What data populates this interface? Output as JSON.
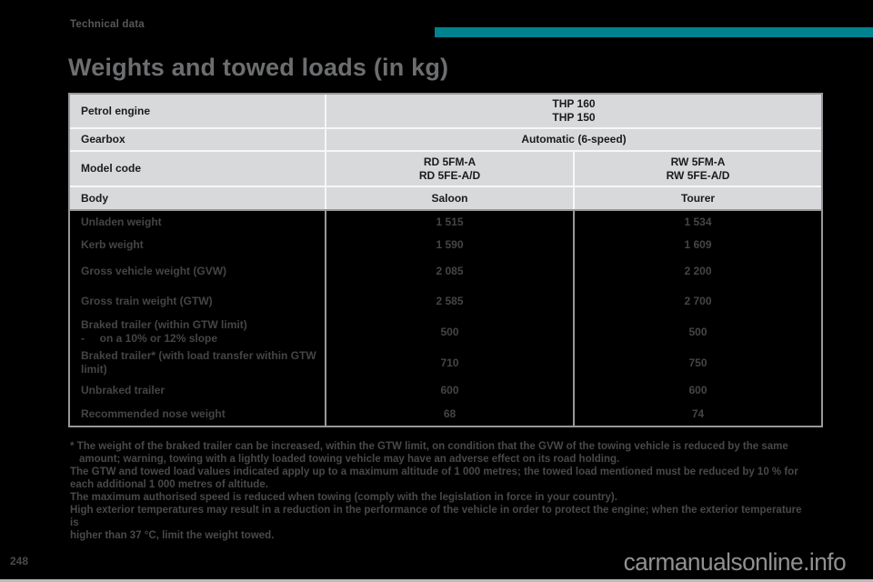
{
  "page": {
    "section_label": "Technical data",
    "title": "Weights and towed loads (in kg)",
    "page_number": "248",
    "watermark": "carmanualsonline.info"
  },
  "colors": {
    "accent_teal": "#00838F",
    "header_cell_bg": "#D8D9DA",
    "page_background": "#000000"
  },
  "table": {
    "header": {
      "petrol_engine": {
        "label": "Petrol engine",
        "value_line1": "THP 160",
        "value_line2": "THP 150"
      },
      "gearbox": {
        "label": "Gearbox",
        "value": "Automatic (6-speed)"
      },
      "model_code": {
        "label": "Model code",
        "saloon_line1": "RD 5FM-A",
        "saloon_line2": "RD 5FE-A/D",
        "tourer_line1": "RW 5FM-A",
        "tourer_line2": "RW 5FE-A/D"
      },
      "body": {
        "label": "Body",
        "saloon": "Saloon",
        "tourer": "Tourer"
      }
    },
    "data_rows": [
      {
        "label": "Unladen weight",
        "saloon": "1 515",
        "tourer": "1 534"
      },
      {
        "label": "Kerb weight",
        "saloon": "1 590",
        "tourer": "1 609"
      },
      {
        "label": "Gross vehicle weight (GVW)",
        "saloon": "2 085",
        "tourer": "2 200"
      },
      {
        "label": "Gross train weight (GTW)",
        "saloon": "2 585",
        "tourer": "2 700"
      },
      {
        "label": "Braked trailer (within GTW limit)",
        "label2": "-     on a 10% or 12% slope",
        "saloon": "500",
        "tourer": "500"
      },
      {
        "label": "Braked trailer* (with load transfer within GTW",
        "label2": "limit)",
        "saloon": "710",
        "tourer": "750"
      },
      {
        "label": "Unbraked trailer",
        "saloon": "600",
        "tourer": "600"
      },
      {
        "label": "Recommended nose weight",
        "saloon": "68",
        "tourer": "74"
      }
    ]
  },
  "footnotes": {
    "lines": [
      {
        "text": "* The weight of the braked trailer can be increased, within the GTW limit, on condition that the GVW of the towing vehicle is reduced by the same"
      },
      {
        "text": "amount; warning, towing with a lightly loaded towing vehicle may have an adverse effect on its road holding."
      },
      {
        "text": "The GTW and towed load values indicated apply up to a maximum altitude of 1 000 metres; the towed load mentioned must be reduced by 10 % for"
      },
      {
        "text": "each additional 1 000 metres of altitude."
      },
      {
        "text": "The maximum authorised speed is reduced when towing (comply with the legislation in force in your country)."
      },
      {
        "text": "High exterior temperatures may result in a reduction in the performance of the vehicle in order to protect the engine; when the exterior temperature is"
      },
      {
        "text": "higher than 37 °C, limit the weight towed."
      }
    ]
  }
}
